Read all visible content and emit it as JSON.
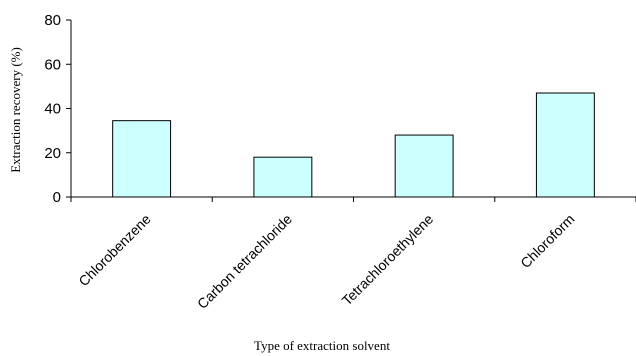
{
  "chart_data": {
    "type": "bar",
    "title": "",
    "xlabel": "Type of extraction solvent",
    "ylabel": "Extraction recovery (%)",
    "categories": [
      "Chlorobenzene",
      "Carbon tetrachloride",
      "Tetrachloroethylene",
      "Chloroform"
    ],
    "values": [
      34.5,
      18,
      28,
      47
    ],
    "ylim": [
      0,
      80
    ],
    "yticks": [
      0,
      20,
      40,
      60,
      80
    ],
    "grid": false,
    "legend": "none",
    "bar_color": "#ccffff",
    "bar_edge_color": "#000000"
  }
}
